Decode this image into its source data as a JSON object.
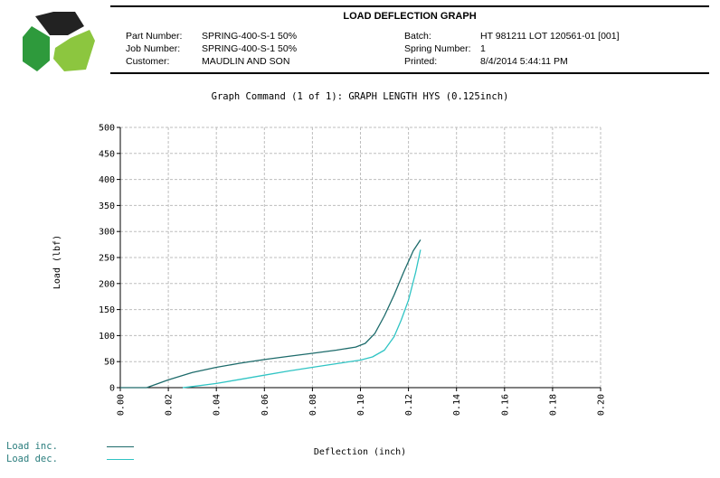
{
  "header": {
    "title": "LOAD DEFLECTION GRAPH",
    "part_number_label": "Part Number:",
    "part_number": "SPRING-400-S-1 50%",
    "job_number_label": "Job Number:",
    "job_number": "SPRING-400-S-1 50%",
    "customer_label": "Customer:",
    "customer": "MAUDLIN AND SON",
    "batch_label": "Batch:",
    "batch": "HT 981211 LOT 120561-01 [001]",
    "spring_number_label": "Spring Number:",
    "spring_number": "1",
    "printed_label": "Printed:",
    "printed": "8/4/2014 5:44:11 PM"
  },
  "colors": {
    "logo_dark": "#222222",
    "logo_green": "#2e9a3c",
    "logo_lightgreen": "#8cc63f",
    "load_inc": "#1d6b6b",
    "load_dec": "#30c4c4",
    "grid": "#bdbdbd"
  },
  "chart_data": {
    "type": "line",
    "title": "Graph Command (1 of 1): GRAPH LENGTH HYS (0.125inch)",
    "xlabel": "Deflection (inch)",
    "ylabel": "Load (lbf)",
    "xlim": [
      0,
      0.2
    ],
    "ylim": [
      0,
      500
    ],
    "xticks": [
      "0.00",
      "0.02",
      "0.04",
      "0.06",
      "0.08",
      "0.10",
      "0.12",
      "0.14",
      "0.16",
      "0.18",
      "0.20"
    ],
    "yticks": [
      "0",
      "50",
      "100",
      "150",
      "200",
      "250",
      "300",
      "350",
      "400",
      "450",
      "500"
    ],
    "grid": true,
    "legend_position": "bottom-left",
    "series": [
      {
        "name": "Load inc.",
        "x": [
          0.0,
          0.011,
          0.02,
          0.03,
          0.04,
          0.05,
          0.06,
          0.07,
          0.08,
          0.09,
          0.098,
          0.102,
          0.106,
          0.11,
          0.114,
          0.118,
          0.122,
          0.125
        ],
        "y": [
          0,
          0,
          15,
          29,
          39,
          47,
          54,
          60,
          66,
          72,
          78,
          85,
          104,
          138,
          178,
          222,
          263,
          284
        ]
      },
      {
        "name": "Load dec.",
        "x": [
          0.026,
          0.03,
          0.04,
          0.05,
          0.06,
          0.07,
          0.08,
          0.09,
          0.1,
          0.105,
          0.11,
          0.114,
          0.117,
          0.12,
          0.123,
          0.125
        ],
        "y": [
          0,
          2,
          8,
          16,
          24,
          32,
          39,
          46,
          53,
          59,
          72,
          98,
          130,
          168,
          222,
          265
        ]
      }
    ]
  }
}
